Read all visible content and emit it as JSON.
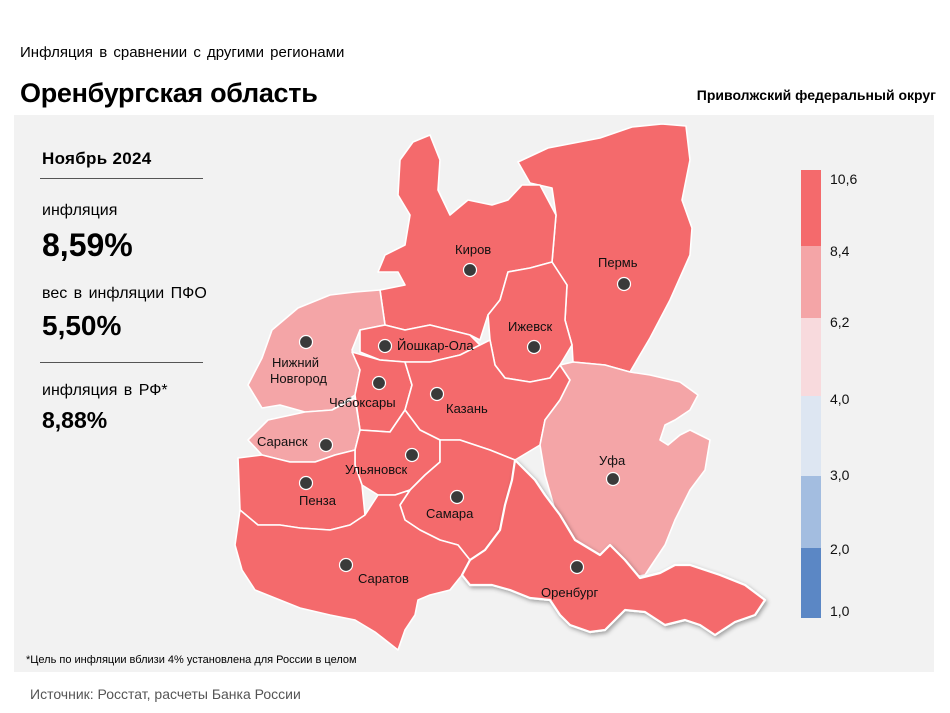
{
  "header": {
    "supertitle": "Инфляция  в сравнении  с другими  регионами",
    "title": "Оренбургская область",
    "district": "Приволжский федеральный округ"
  },
  "stats": {
    "period": "Ноябрь 2024",
    "inflation_label": "инфляция",
    "inflation_value": "8,59%",
    "weight_label": "вес в инфляции  ПФО",
    "weight_value": "5,50%",
    "russia_label": "инфляция  в РФ*",
    "russia_value": "8,88%"
  },
  "footnote": "*Цель по инфляции вблизи 4% установлена для России в целом",
  "source": "Источник: Росстат, расчеты Банка России",
  "colors": {
    "band_8_4_10_6": "#f46a6c",
    "band_6_2_8_4": "#f4a5a7",
    "band_4_0_6_2": "#f8dadd",
    "band_3_0_4_0": "#dde6f2",
    "band_2_0_3_0": "#a3bde0",
    "band_1_0_2_0": "#5b87c5",
    "panel": "#f2f2f2"
  },
  "legend": {
    "ticks": [
      "10,6",
      "8,4",
      "6,2",
      "4,0",
      "3,0",
      "2,0",
      "1,0"
    ]
  },
  "regions": [
    {
      "city": "Киров",
      "band": "8.4–10.6"
    },
    {
      "city": "Пермь",
      "band": "8.4–10.6"
    },
    {
      "city": "Ижевск",
      "band": "8.4–10.6"
    },
    {
      "city": "Йошкар-Ола",
      "band": "8.4–10.6"
    },
    {
      "city": "Нижний Новгород",
      "band": "6.2–8.4"
    },
    {
      "city": "Чебоксары",
      "band": "8.4–10.6"
    },
    {
      "city": "Казань",
      "band": "8.4–10.6"
    },
    {
      "city": "Саранск",
      "band": "6.2–8.4"
    },
    {
      "city": "Ульяновск",
      "band": "8.4–10.6"
    },
    {
      "city": "Уфа",
      "band": "6.2–8.4"
    },
    {
      "city": "Пенза",
      "band": "8.4–10.6"
    },
    {
      "city": "Самара",
      "band": "8.4–10.6"
    },
    {
      "city": "Оренбург",
      "band": "8.4–10.6"
    },
    {
      "city": "Саратов",
      "band": "8.4–10.6"
    }
  ],
  "labels": {
    "kirov": "Киров",
    "perm": "Пермь",
    "izhevsk": "Ижевск",
    "yoshkar": "Йошкар-Ола",
    "nn1": "Нижний",
    "nn2": "Новгород",
    "cheb": "Чебоксары",
    "kazan": "Казань",
    "saransk": "Саранск",
    "ulyanovsk": "Ульяновск",
    "ufa": "Уфа",
    "penza": "Пенза",
    "samara": "Самара",
    "orenburg": "Оренбург",
    "saratov": "Саратов"
  }
}
